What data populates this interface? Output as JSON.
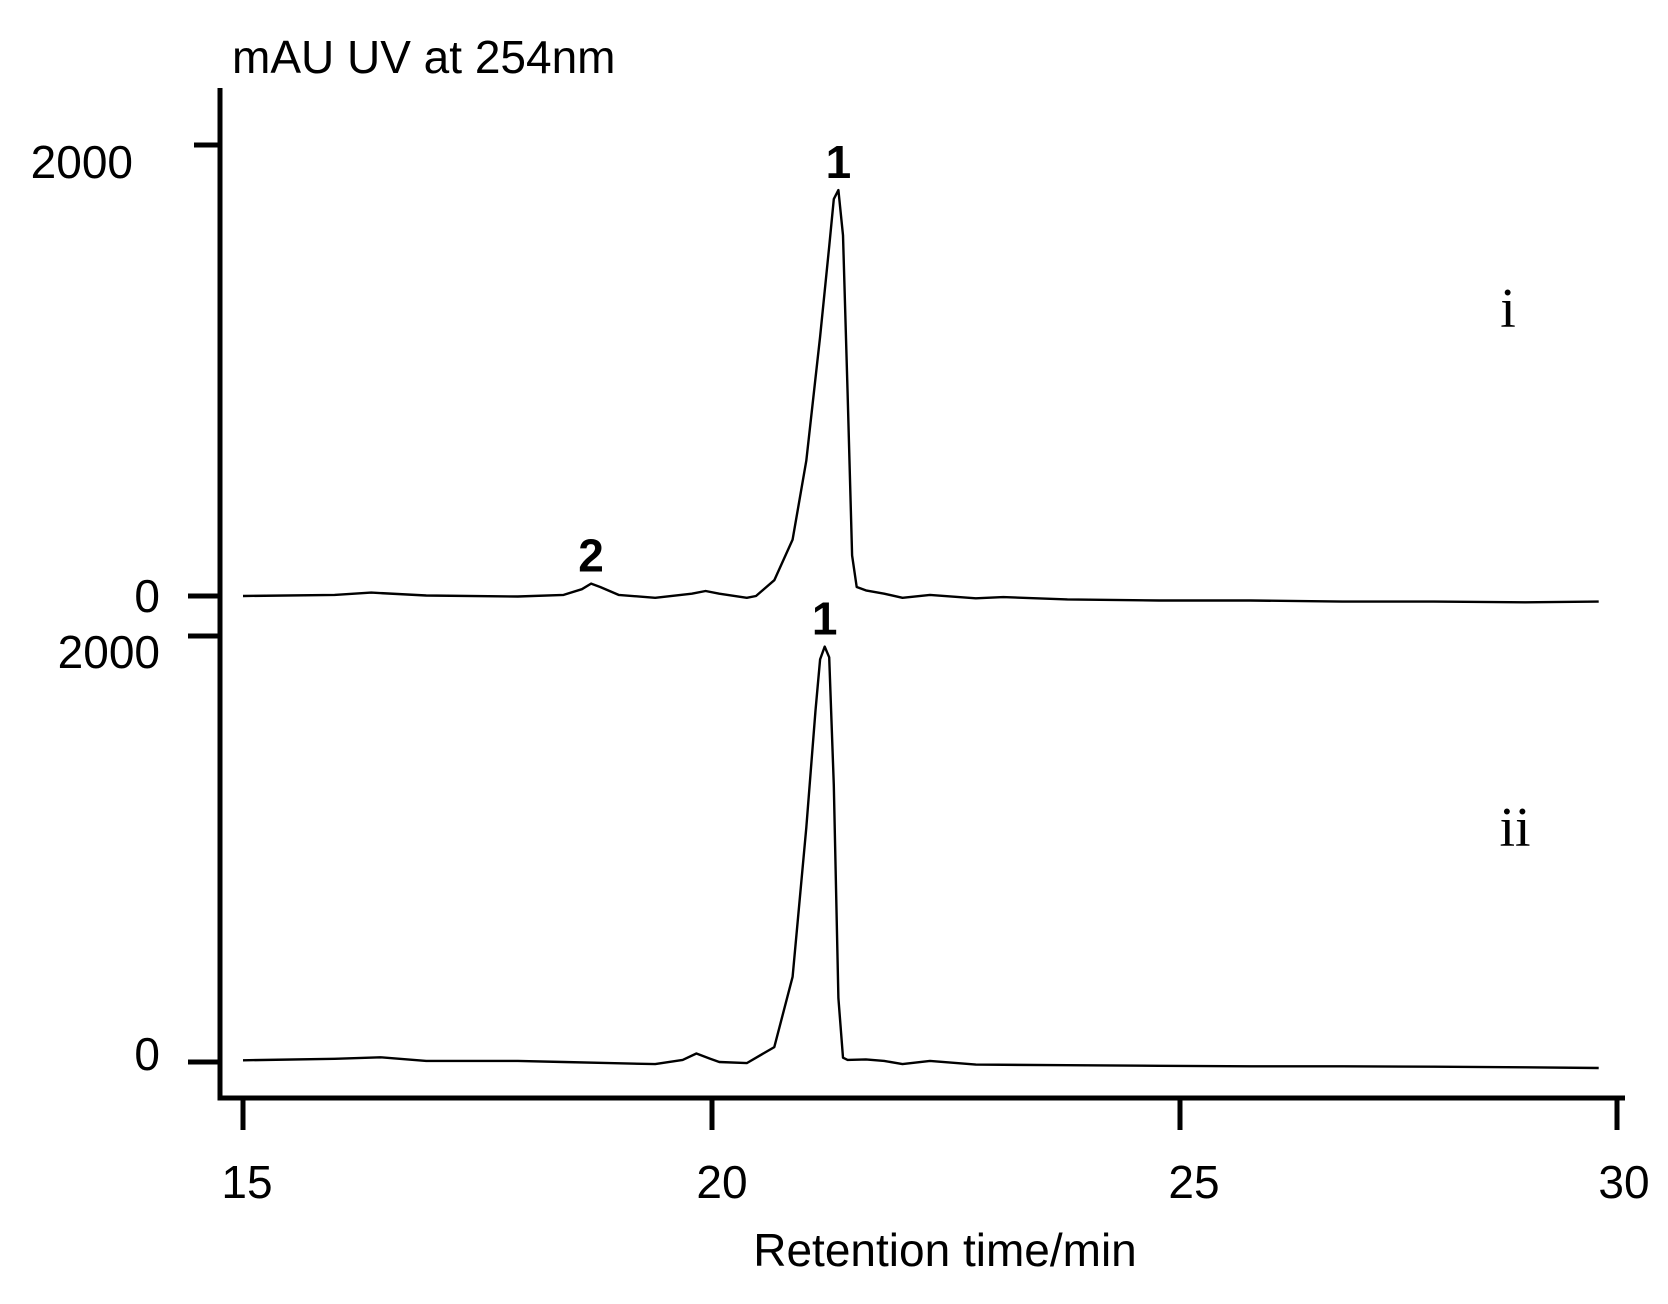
{
  "chart_data": {
    "type": "line",
    "title": "",
    "ylabel": "mAU UV at 254nm",
    "xlabel": "Retention time/min",
    "xlim": [
      14.8,
      30
    ],
    "x_ticks": [
      "15",
      "20",
      "25",
      "30"
    ],
    "grid": false,
    "panels": [
      {
        "name": "i",
        "y_ticks": [
          "2000",
          "0"
        ],
        "ylim": [
          0,
          2000
        ],
        "peak_labels": [
          {
            "label": "1",
            "x": 21.5,
            "y": 1800
          },
          {
            "label": "2",
            "x": 18.8,
            "y": 55
          }
        ],
        "series": [
          {
            "x": [
              15.0,
              16.0,
              16.4,
              17.0,
              18.0,
              18.5,
              18.7,
              18.8,
              18.9,
              19.1,
              19.5,
              19.9,
              20.05,
              20.2,
              20.5,
              20.6,
              20.8,
              21.0,
              21.15,
              21.3,
              21.4,
              21.45,
              21.5,
              21.55,
              21.6,
              21.65,
              21.7,
              21.8,
              22.0,
              22.2,
              22.5,
              23.0,
              23.3,
              24.0,
              25.0,
              26.0,
              27.0,
              28.0,
              29.0,
              29.8
            ],
            "y": [
              0,
              5,
              15,
              2,
              -2,
              5,
              30,
              55,
              40,
              5,
              -8,
              10,
              22,
              10,
              -8,
              0,
              70,
              250,
              600,
              1150,
              1550,
              1760,
              1800,
              1600,
              900,
              180,
              40,
              25,
              10,
              -8,
              5,
              -10,
              -5,
              -15,
              -20,
              -20,
              -25,
              -25,
              -28,
              -25
            ]
          }
        ]
      },
      {
        "name": "ii",
        "y_ticks": [
          "2000",
          "0"
        ],
        "ylim": [
          0,
          2000
        ],
        "peak_labels": [
          {
            "label": "1",
            "x": 21.35,
            "y": 1950
          }
        ],
        "series": [
          {
            "x": [
              15.0,
              16.0,
              16.5,
              17.0,
              18.0,
              18.5,
              19.0,
              19.5,
              19.8,
              19.95,
              20.1,
              20.2,
              20.5,
              20.8,
              21.0,
              21.15,
              21.25,
              21.3,
              21.35,
              21.4,
              21.45,
              21.5,
              21.55,
              21.6,
              21.8,
              22.0,
              22.2,
              22.5,
              23.0,
              24.0,
              25.0,
              26.0,
              27.0,
              28.0,
              29.0,
              29.8
            ],
            "y": [
              8,
              15,
              22,
              5,
              5,
              0,
              -5,
              -10,
              10,
              40,
              15,
              0,
              -5,
              70,
              400,
              1100,
              1650,
              1890,
              1950,
              1900,
              1300,
              300,
              20,
              10,
              12,
              5,
              -10,
              5,
              -12,
              -15,
              -18,
              -20,
              -20,
              -22,
              -25,
              -28
            ]
          }
        ]
      }
    ]
  }
}
